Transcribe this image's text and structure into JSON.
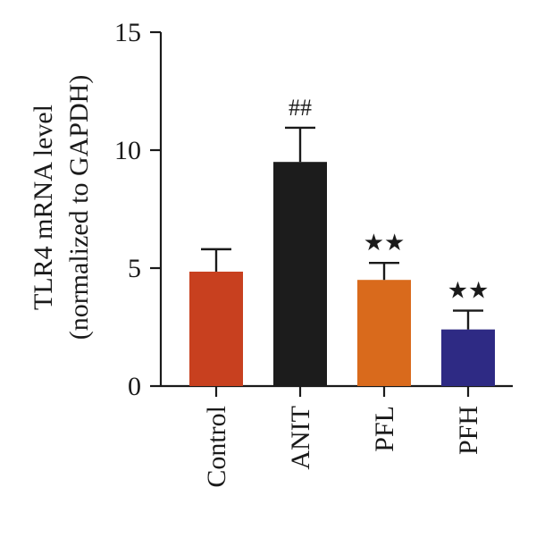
{
  "chart_data": {
    "type": "bar",
    "ylabel_line1": "TLR4 mRNA level",
    "ylabel_line2": "(normalized to GAPDH)",
    "ylim": [
      0,
      15
    ],
    "yticks": [
      0,
      5,
      10,
      15
    ],
    "categories": [
      "Control",
      "ANIT",
      "PFL",
      "PFH"
    ],
    "values": [
      4.85,
      9.5,
      4.5,
      2.4
    ],
    "errors": [
      0.95,
      1.45,
      0.72,
      0.8
    ],
    "colors": [
      "#c8401f",
      "#1c1c1c",
      "#d96a1c",
      "#2e2a84"
    ],
    "annotations": [
      "",
      "##",
      "★★",
      "★★"
    ]
  }
}
